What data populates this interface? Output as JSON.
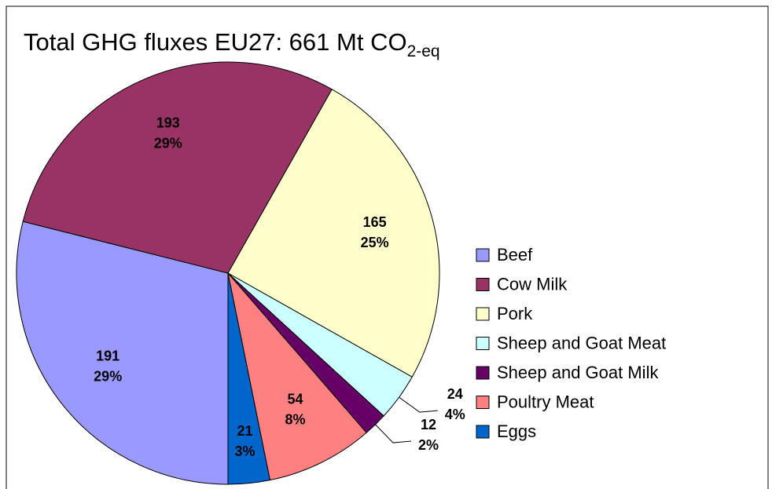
{
  "chart_data": {
    "type": "pie",
    "title": "Total GHG fluxes EU27: 661 Mt CO",
    "title_subscript": "2-eq",
    "categories": [
      "Beef",
      "Cow Milk",
      "Pork",
      "Sheep and Goat Meat",
      "Sheep and Goat Milk",
      "Poultry Meat",
      "Eggs"
    ],
    "values": [
      191,
      193,
      165,
      24,
      12,
      54,
      21
    ],
    "percentages": [
      {
        "value": 29,
        "label": "29%"
      },
      {
        "value": 29,
        "label": "29%"
      },
      {
        "value": 25,
        "label": "25%"
      },
      {
        "value": 4,
        "label": "4%"
      },
      {
        "value": 2,
        "label": "2%"
      },
      {
        "value": 8,
        "label": "8%"
      },
      {
        "value": 3,
        "label": "3%"
      }
    ],
    "colors": [
      "#9999ff",
      "#993366",
      "#ffffcc",
      "#ccffff",
      "#660066",
      "#ff8080",
      "#0066cc"
    ],
    "legend": "right"
  }
}
